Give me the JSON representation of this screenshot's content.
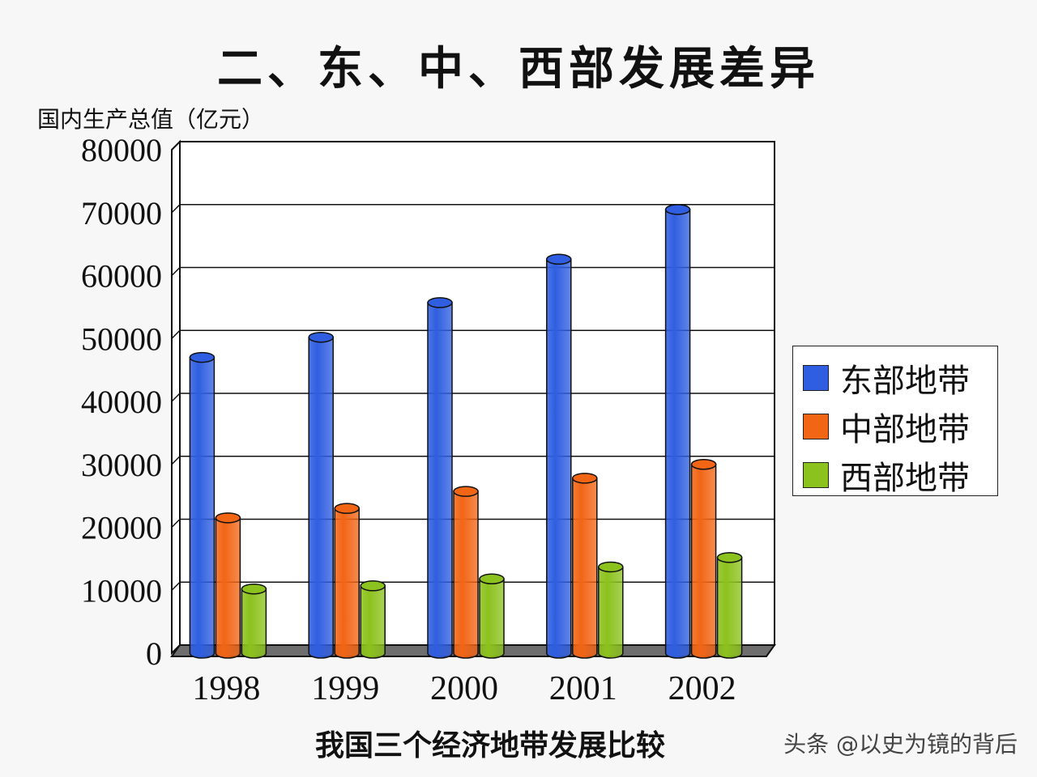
{
  "title": "二、东、中、西部发展差异",
  "caption": "我国三个经济地带发展比较",
  "watermark": "头条 @以史为镜的背后",
  "chart_data": {
    "type": "bar",
    "title": "二、东、中、西部发展差异",
    "xlabel": "我国三个经济地带发展比较",
    "ylabel": "国内生产总值（亿元）",
    "categories": [
      "1998",
      "1999",
      "2000",
      "2001",
      "2002"
    ],
    "series": [
      {
        "name": "东部地带",
        "color": "#2f5ee0",
        "values": [
          47000,
          50200,
          55700,
          62600,
          70500
        ]
      },
      {
        "name": "中部地带",
        "color": "#f26515",
        "values": [
          21500,
          23000,
          25700,
          27800,
          30000
        ]
      },
      {
        "name": "西部地带",
        "color": "#8cc21d",
        "values": [
          10200,
          10700,
          11800,
          13700,
          15200
        ]
      }
    ],
    "ylim": [
      0,
      80000
    ],
    "yticks": [
      0,
      10000,
      20000,
      30000,
      40000,
      50000,
      60000,
      70000,
      80000
    ],
    "grid": true,
    "legend_position": "right"
  }
}
